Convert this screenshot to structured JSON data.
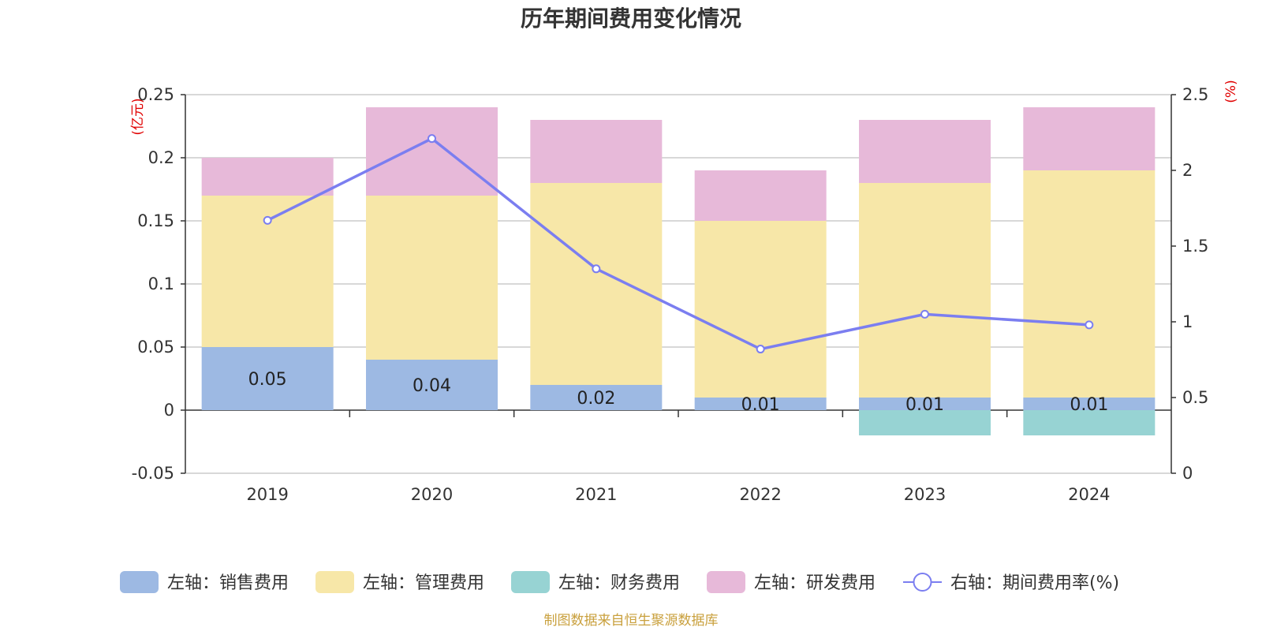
{
  "chart_data": {
    "type": "bar",
    "title": "历年期间费用变化情况",
    "categories": [
      "2019",
      "2020",
      "2021",
      "2022",
      "2023",
      "2024"
    ],
    "y_left": {
      "unit": "(亿元)",
      "min": -0.05,
      "max": 0.25,
      "ticks": [
        -0.05,
        0,
        0.05,
        0.1,
        0.15,
        0.2,
        0.25
      ],
      "tick_labels": [
        "-0.05",
        "0",
        "0.05",
        "0.1",
        "0.15",
        "0.2",
        "0.25"
      ]
    },
    "y_right": {
      "unit": "(%)",
      "min": 0,
      "max": 2.5,
      "ticks": [
        0,
        0.5,
        1,
        1.5,
        2,
        2.5
      ],
      "tick_labels": [
        "0",
        "0.5",
        "1",
        "1.5",
        "2",
        "2.5"
      ]
    },
    "series": [
      {
        "name": "左轴：销售费用",
        "type": "bar",
        "axis": "left",
        "color": "#9db9e3",
        "values": [
          0.05,
          0.04,
          0.02,
          0.01,
          0.01,
          0.01
        ],
        "labels": [
          "0.05",
          "0.04",
          "0.02",
          "0.01",
          "0.01",
          "0.01"
        ]
      },
      {
        "name": "左轴：管理费用",
        "type": "bar",
        "axis": "left",
        "color": "#f7e7a8",
        "values": [
          0.12,
          0.13,
          0.16,
          0.14,
          0.17,
          0.18
        ]
      },
      {
        "name": "左轴：财务费用",
        "type": "bar",
        "axis": "left",
        "color": "#97d3d3",
        "values": [
          0,
          0,
          0,
          0,
          -0.02,
          -0.02
        ]
      },
      {
        "name": "左轴：研发费用",
        "type": "bar",
        "axis": "left",
        "color": "#e7b9d9",
        "values": [
          0.03,
          0.07,
          0.05,
          0.04,
          0.05,
          0.05
        ]
      },
      {
        "name": "右轴：期间费用率(%)",
        "type": "line",
        "axis": "right",
        "color": "#7b7ef0",
        "values": [
          1.67,
          2.21,
          1.35,
          0.82,
          1.05,
          0.98
        ]
      }
    ],
    "grid": true,
    "legend_position": "bottom"
  },
  "footer": "制图数据来自恒生聚源数据库"
}
